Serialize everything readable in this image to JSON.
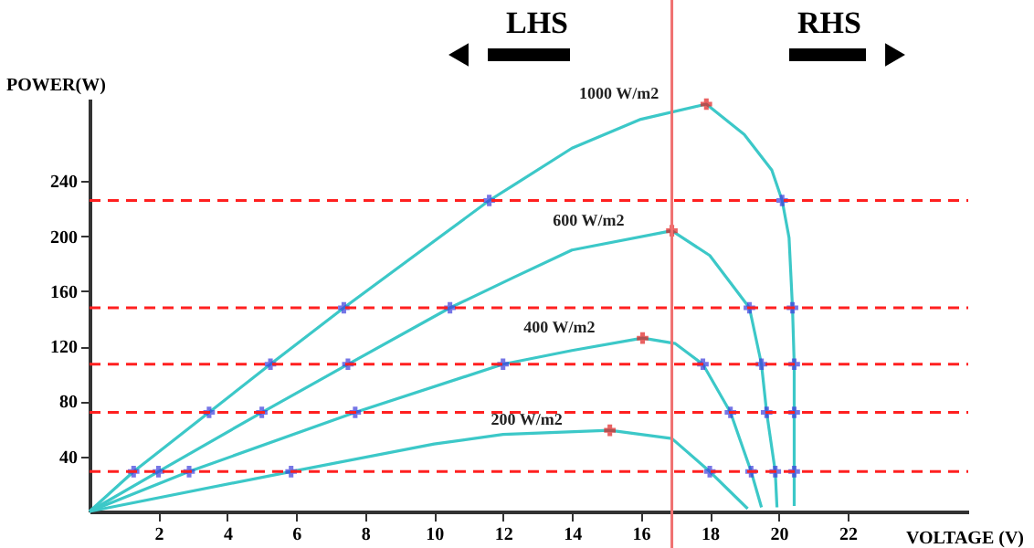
{
  "chart_data": {
    "type": "line",
    "xlabel": "VOLTAGE (V)",
    "ylabel": "POWER(W)",
    "xlim": [
      0,
      25.5
    ],
    "ylim": [
      0,
      300
    ],
    "xticks": [
      2,
      4,
      6,
      8,
      10,
      12,
      14,
      16,
      18,
      20,
      22
    ],
    "yticks": [
      40,
      80,
      120,
      160,
      200,
      240
    ],
    "grid": false,
    "line_style": "solid",
    "marker": "none",
    "series": [
      {
        "name": "1000 W/m2",
        "color": "#3cc8c8",
        "x": [
          0,
          1.28,
          3.47,
          5.25,
          7.38,
          11.6,
          12.3,
          14,
          16,
          17.9,
          19,
          19.8,
          20.1,
          20.3,
          20.4,
          20.45,
          20.45,
          20.45,
          20.45
        ],
        "values": [
          0,
          29,
          72,
          107,
          148,
          226,
          237,
          264,
          285,
          296,
          274,
          248,
          226,
          199,
          148,
          107,
          72,
          29,
          4
        ]
      },
      {
        "name": "600 W/m2",
        "color": "#3cc8c8",
        "x": [
          0,
          2.0,
          5.0,
          7.5,
          10.46,
          12.3,
          14,
          16.9,
          18,
          19.15,
          19.5,
          19.65,
          19.9,
          19.95
        ],
        "values": [
          0,
          29,
          72,
          107,
          148,
          170,
          190,
          204,
          186,
          148,
          107,
          72,
          29,
          3
        ]
      },
      {
        "name": "400 W/m2",
        "color": "#3cc8c8",
        "x": [
          0,
          2.89,
          7.71,
          12.0,
          14,
          16.05,
          17,
          17.8,
          18.6,
          19.2,
          19.5
        ],
        "values": [
          0,
          29,
          72,
          107,
          117,
          126,
          122,
          107,
          72,
          29,
          3
        ]
      },
      {
        "name": "200 W/m2",
        "color": "#3cc8c8",
        "x": [
          0,
          5.85,
          10,
          12,
          15.1,
          16.9,
          18.0,
          19.1
        ],
        "values": [
          0,
          29,
          49,
          56,
          59,
          53,
          29,
          2
        ]
      },
      {
        "type": "scatter",
        "color": "#3c3cdc",
        "marker": "cross",
        "x": [
          1.28,
          3.47,
          5.25,
          7.38,
          11.6,
          20.1,
          20.4,
          20.45,
          20.45,
          20.45,
          2.0,
          5.0,
          7.5,
          10.46,
          19.15,
          19.5,
          19.65,
          19.9,
          2.89,
          7.71,
          12.0,
          17.8,
          18.6,
          19.2,
          5.85,
          18.0
        ],
        "values": [
          29,
          72,
          107,
          148,
          226,
          226,
          148,
          107,
          72,
          29,
          29,
          72,
          107,
          148,
          148,
          107,
          72,
          29,
          29,
          72,
          107,
          107,
          72,
          29,
          29,
          29
        ]
      },
      {
        "type": "scatter",
        "color": "#e02020",
        "marker": "cross",
        "x": [
          17.9,
          16.9,
          16.05,
          15.1
        ],
        "values": [
          296,
          204,
          126,
          59
        ]
      }
    ],
    "ref_lines": [
      {
        "axis": "y",
        "value": 226,
        "color": "#ff2020",
        "line_style": "dashed"
      },
      {
        "axis": "y",
        "value": 148,
        "color": "#ff2020",
        "line_style": "dashed"
      },
      {
        "axis": "y",
        "value": 107,
        "color": "#ff2020",
        "line_style": "dashed"
      },
      {
        "axis": "y",
        "value": 72,
        "color": "#ff2020",
        "line_style": "dashed"
      },
      {
        "axis": "y",
        "value": 29,
        "color": "#ff2020",
        "line_style": "dashed"
      },
      {
        "axis": "x",
        "value": 16.9,
        "color": "#f07070",
        "line_style": "solid"
      }
    ],
    "annotations": [
      "LHS",
      "RHS"
    ]
  }
}
